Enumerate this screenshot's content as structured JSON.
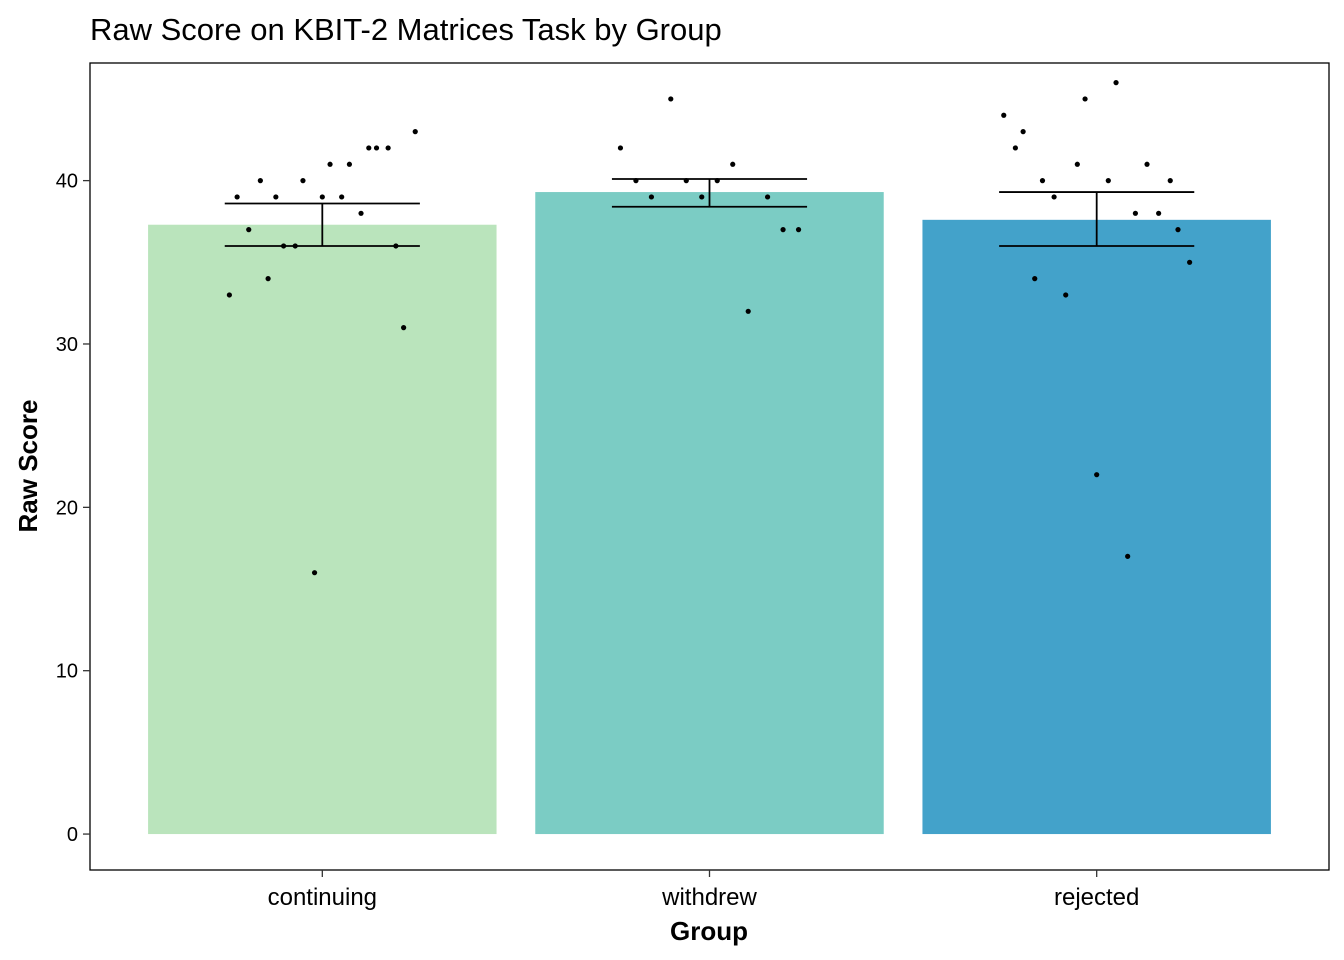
{
  "chart_data": {
    "type": "bar",
    "title": "Raw Score on KBIT-2 Matrices Task by Group",
    "xlabel": "Group",
    "ylabel": "Raw Score",
    "categories": [
      "continuing",
      "withdrew",
      "rejected"
    ],
    "ylim": [
      -2.2,
      47.2
    ],
    "yticks": [
      0,
      10,
      20,
      30,
      40
    ],
    "ytick_labels": [
      "0",
      "10",
      "20",
      "30",
      "40"
    ],
    "grid": false,
    "legend": "none",
    "series": [
      {
        "values": [
          37.3,
          39.3,
          37.6
        ],
        "error_low": [
          36.0,
          38.4,
          36.0
        ],
        "error_high": [
          38.6,
          40.1,
          39.3
        ],
        "colors": [
          "#bae4bc",
          "#7bccc4",
          "#43a2ca"
        ]
      }
    ],
    "points": [
      [
        {
          "dx": -0.24,
          "y": 33
        },
        {
          "dx": -0.22,
          "y": 39
        },
        {
          "dx": -0.19,
          "y": 37
        },
        {
          "dx": -0.16,
          "y": 40
        },
        {
          "dx": -0.14,
          "y": 34
        },
        {
          "dx": -0.12,
          "y": 39
        },
        {
          "dx": -0.1,
          "y": 36
        },
        {
          "dx": -0.07,
          "y": 36
        },
        {
          "dx": -0.05,
          "y": 40
        },
        {
          "dx": -0.02,
          "y": 16
        },
        {
          "dx": 0.0,
          "y": 39
        },
        {
          "dx": 0.02,
          "y": 41
        },
        {
          "dx": 0.05,
          "y": 39
        },
        {
          "dx": 0.07,
          "y": 41
        },
        {
          "dx": 0.1,
          "y": 38
        },
        {
          "dx": 0.12,
          "y": 42
        },
        {
          "dx": 0.14,
          "y": 42
        },
        {
          "dx": 0.17,
          "y": 42
        },
        {
          "dx": 0.19,
          "y": 36
        },
        {
          "dx": 0.21,
          "y": 31
        },
        {
          "dx": 0.24,
          "y": 43
        }
      ],
      [
        {
          "dx": -0.23,
          "y": 42
        },
        {
          "dx": -0.19,
          "y": 40
        },
        {
          "dx": -0.15,
          "y": 39
        },
        {
          "dx": -0.1,
          "y": 45
        },
        {
          "dx": -0.06,
          "y": 40
        },
        {
          "dx": -0.02,
          "y": 39
        },
        {
          "dx": 0.02,
          "y": 40
        },
        {
          "dx": 0.06,
          "y": 41
        },
        {
          "dx": 0.1,
          "y": 32
        },
        {
          "dx": 0.15,
          "y": 39
        },
        {
          "dx": 0.19,
          "y": 37
        },
        {
          "dx": 0.23,
          "y": 37
        }
      ],
      [
        {
          "dx": -0.24,
          "y": 44
        },
        {
          "dx": -0.21,
          "y": 42
        },
        {
          "dx": -0.19,
          "y": 43
        },
        {
          "dx": -0.16,
          "y": 34
        },
        {
          "dx": -0.14,
          "y": 40
        },
        {
          "dx": -0.11,
          "y": 39
        },
        {
          "dx": -0.08,
          "y": 33
        },
        {
          "dx": -0.05,
          "y": 41
        },
        {
          "dx": -0.03,
          "y": 45
        },
        {
          "dx": 0.0,
          "y": 22
        },
        {
          "dx": 0.03,
          "y": 40
        },
        {
          "dx": 0.05,
          "y": 46
        },
        {
          "dx": 0.08,
          "y": 17
        },
        {
          "dx": 0.1,
          "y": 38
        },
        {
          "dx": 0.13,
          "y": 41
        },
        {
          "dx": 0.16,
          "y": 38
        },
        {
          "dx": 0.19,
          "y": 40
        },
        {
          "dx": 0.21,
          "y": 37
        },
        {
          "dx": 0.24,
          "y": 35
        }
      ]
    ]
  }
}
